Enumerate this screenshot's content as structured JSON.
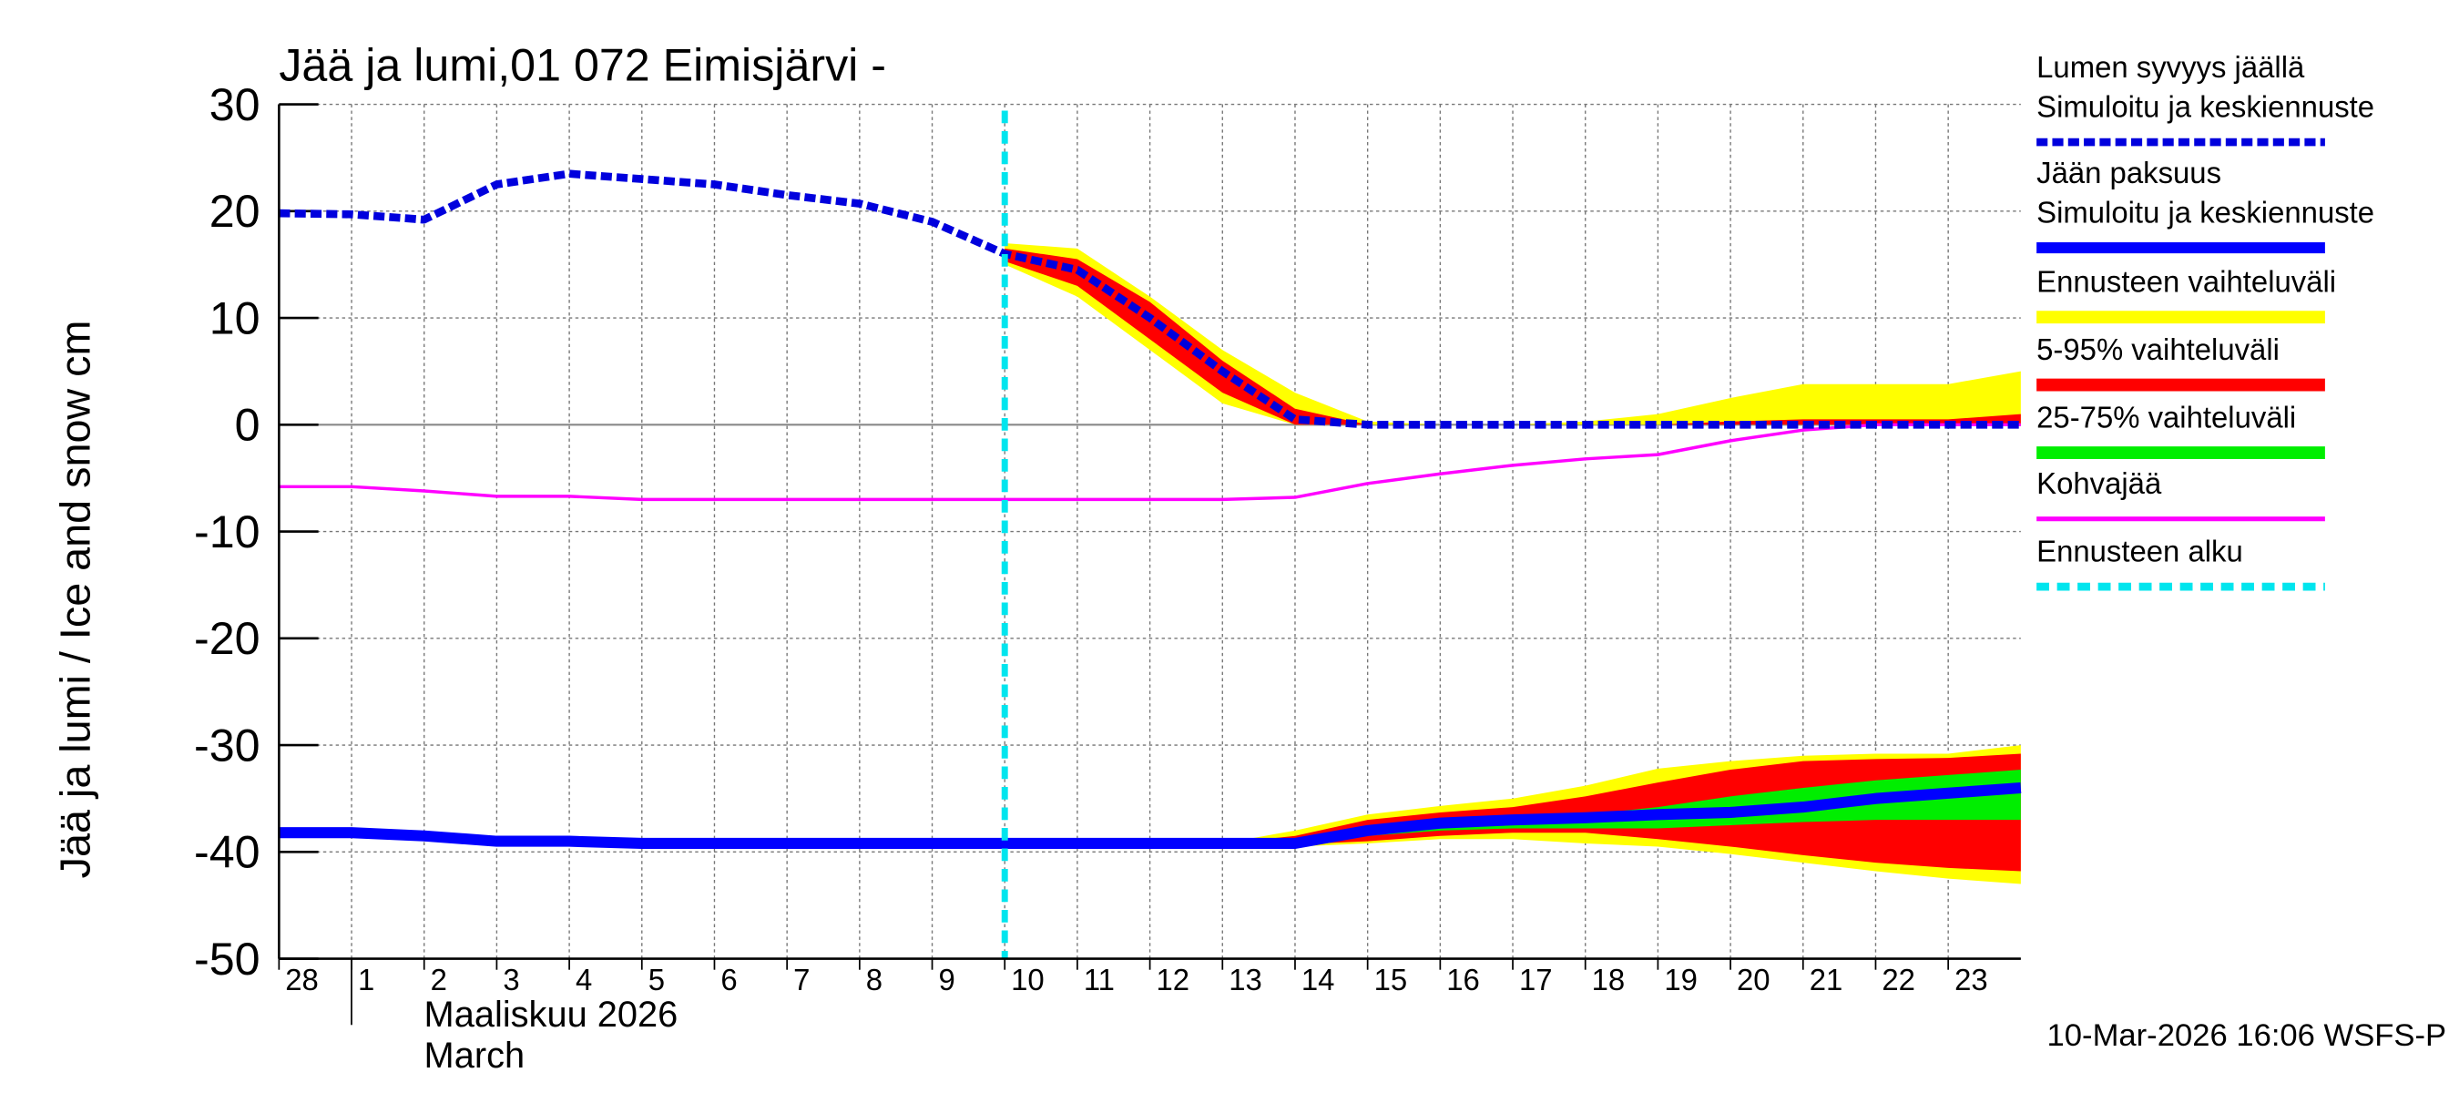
{
  "chart_data": {
    "type": "line",
    "title": "Jää ja lumi,01 072 Eimisjärvi -",
    "ylabel": "Jää ja lumi / Ice and snow    cm",
    "xlabel": [
      "Maaliskuu 2026",
      "March"
    ],
    "footer": "10-Mar-2026 16:06 WSFS-P",
    "xlim": [
      0,
      24
    ],
    "ylim": [
      -50,
      30
    ],
    "yticks": [
      -50,
      -40,
      -30,
      -20,
      -10,
      0,
      10,
      20,
      30
    ],
    "xticks": [
      {
        "value": 0,
        "label": "28"
      },
      1,
      2,
      3,
      4,
      5,
      6,
      7,
      8,
      9,
      10,
      11,
      12,
      13,
      14,
      15,
      16,
      17,
      18,
      19,
      20,
      21,
      22,
      23
    ],
    "grid": true,
    "x": [
      0,
      1,
      2,
      3,
      4,
      5,
      6,
      7,
      8,
      9,
      10,
      11,
      12,
      13,
      14,
      15,
      16,
      17,
      18,
      19,
      20,
      21,
      22,
      23,
      24
    ],
    "bands": [
      {
        "name": "Ennusteen vaihteluväli",
        "color": "#ffff00",
        "ranges": [
          {
            "high": [
              null,
              null,
              null,
              null,
              null,
              null,
              null,
              null,
              null,
              null,
              17,
              16.5,
              12,
              7,
              3,
              0.3,
              0,
              0,
              0.3,
              1,
              2.5,
              3.8,
              3.8,
              3.8,
              5
            ],
            "low": [
              null,
              null,
              null,
              null,
              null,
              null,
              null,
              null,
              null,
              null,
              15,
              12,
              7,
              2,
              0,
              0,
              0,
              0,
              0,
              0,
              0,
              0,
              0,
              0,
              0
            ]
          },
          {
            "high": [
              null,
              null,
              null,
              null,
              null,
              null,
              null,
              null,
              null,
              null,
              null,
              null,
              null,
              -39.2,
              -38,
              -36.5,
              -35.7,
              -35,
              -33.8,
              -32.2,
              -31.5,
              -31,
              -30.8,
              -30.8,
              -30
            ],
            "low": [
              null,
              null,
              null,
              null,
              null,
              null,
              null,
              null,
              null,
              null,
              null,
              null,
              null,
              -39.2,
              -39.5,
              -39.2,
              -38.8,
              -38.8,
              -39.2,
              -39.5,
              -40.2,
              -41,
              -41.8,
              -42.5,
              -43
            ]
          }
        ]
      },
      {
        "name": "5-95% vaihteluväli",
        "color": "#ff0000",
        "ranges": [
          {
            "high": [
              null,
              null,
              null,
              null,
              null,
              null,
              null,
              null,
              null,
              null,
              16.5,
              15.5,
              11.5,
              6,
              1.5,
              0,
              0,
              0,
              0,
              0,
              0.3,
              0.5,
              0.5,
              0.5,
              1
            ],
            "low": [
              null,
              null,
              null,
              null,
              null,
              null,
              null,
              null,
              null,
              null,
              15.3,
              13,
              8,
              3,
              0,
              0,
              0,
              0,
              0,
              0,
              0,
              0,
              0,
              0,
              0
            ]
          },
          {
            "high": [
              null,
              null,
              null,
              null,
              null,
              null,
              null,
              null,
              null,
              null,
              null,
              null,
              null,
              -39.2,
              -38.5,
              -37,
              -36.3,
              -35.8,
              -34.8,
              -33.5,
              -32.3,
              -31.5,
              -31.3,
              -31.2,
              -30.8
            ],
            "low": [
              null,
              null,
              null,
              null,
              null,
              null,
              null,
              null,
              null,
              null,
              null,
              null,
              null,
              -39.2,
              -39.3,
              -39,
              -38.5,
              -38.2,
              -38.2,
              -38.8,
              -39.5,
              -40.3,
              -41,
              -41.5,
              -41.8
            ]
          }
        ]
      },
      {
        "name": "25-75% vaihteluväli",
        "color": "#00ee00",
        "ranges": [
          {
            "high": [
              null,
              null,
              null,
              null,
              null,
              null,
              null,
              null,
              null,
              null,
              null,
              null,
              null,
              -39.2,
              -39,
              -38,
              -37.5,
              -37,
              -36.5,
              -35.8,
              -34.8,
              -34,
              -33.3,
              -32.8,
              -32.3
            ],
            "low": [
              null,
              null,
              null,
              null,
              null,
              null,
              null,
              null,
              null,
              null,
              null,
              null,
              null,
              -39.2,
              -39.2,
              -38.5,
              -38,
              -37.8,
              -37.8,
              -37.8,
              -37.5,
              -37.2,
              -37,
              -37,
              -37
            ]
          }
        ]
      }
    ],
    "series": [
      {
        "group": "Kohvajää",
        "name": null,
        "color": "#ff00ff",
        "style": "thin",
        "values": [
          -5.8,
          -5.8,
          -6.2,
          -6.7,
          -6.7,
          -7,
          -7,
          -7,
          -7,
          -7,
          -7,
          -7,
          -7,
          -7,
          -6.8,
          -5.5,
          -4.6,
          -3.8,
          -3.2,
          -2.8,
          -1.5,
          -0.5,
          0,
          0,
          0
        ]
      },
      {
        "group": "Lumen syvyys jäällä",
        "name": "Simuloitu ja keskiennuste",
        "color": "#0000dd",
        "style": "dashed",
        "values": [
          19.8,
          19.7,
          19.2,
          22.5,
          23.5,
          23,
          22.5,
          21.5,
          20.7,
          19,
          16,
          14.5,
          10,
          5,
          0.5,
          0,
          0,
          0,
          0,
          0,
          0,
          0,
          0,
          0,
          0
        ]
      },
      {
        "group": "Jään paksuus",
        "name": "Simuloitu ja keskiennuste",
        "color": "#0000ff",
        "style": "thick",
        "values": [
          -38.2,
          -38.2,
          -38.5,
          -39,
          -39,
          -39.2,
          -39.2,
          -39.2,
          -39.2,
          -39.2,
          -39.2,
          -39.2,
          -39.2,
          -39.2,
          -39.2,
          -38,
          -37.3,
          -37,
          -36.8,
          -36.5,
          -36.3,
          -35.8,
          -35,
          -34.5,
          -34
        ]
      }
    ],
    "forecast_start": {
      "name": "Ennusteen alku",
      "x": 10,
      "color": "#00e5ee"
    }
  }
}
